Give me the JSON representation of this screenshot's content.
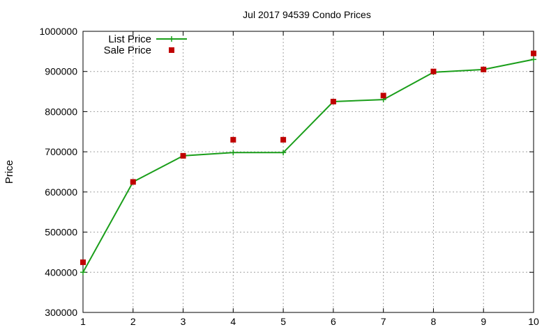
{
  "chart_data": {
    "type": "line",
    "title": "Jul 2017 94539 Condo Prices",
    "xlabel": "",
    "ylabel": "Price",
    "x": [
      1,
      2,
      3,
      4,
      5,
      6,
      7,
      8,
      9,
      10
    ],
    "xlim": [
      1,
      10
    ],
    "ylim": [
      300000,
      1000000
    ],
    "xticks": [
      "1",
      "2",
      "3",
      "4",
      "5",
      "6",
      "7",
      "8",
      "9",
      "10"
    ],
    "yticks": [
      "300000",
      "400000",
      "500000",
      "600000",
      "700000",
      "800000",
      "900000",
      "1000000"
    ],
    "grid": true,
    "legend_position": "top-left",
    "series": [
      {
        "name": "List Price",
        "style": "line-with-plus-markers",
        "color": "#1a9e1a",
        "values": [
          400000,
          625000,
          690000,
          698000,
          698000,
          825000,
          830000,
          898000,
          905000,
          930000
        ]
      },
      {
        "name": "Sale Price",
        "style": "square-points",
        "color": "#c00000",
        "values": [
          425000,
          625000,
          690000,
          730000,
          730000,
          825000,
          840000,
          900000,
          905000,
          945000
        ]
      }
    ]
  }
}
